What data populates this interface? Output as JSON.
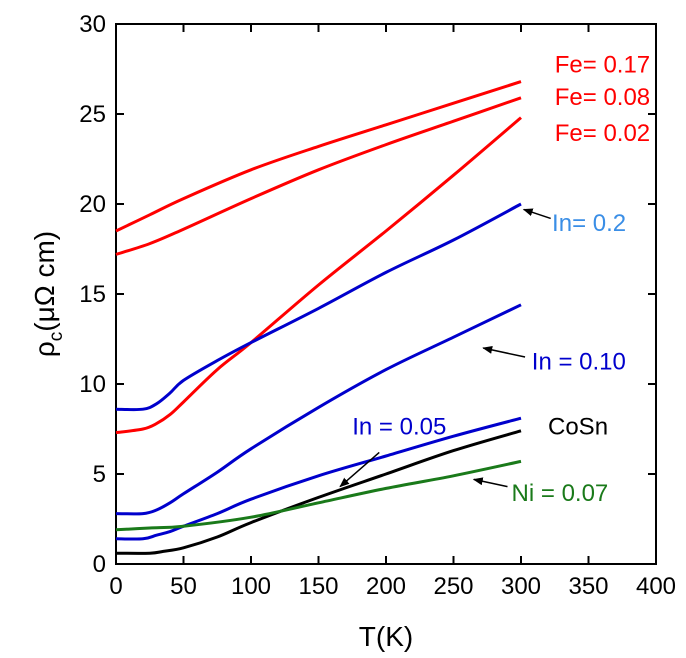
{
  "chart_data": {
    "type": "line",
    "xlabel": "T(K)",
    "ylabel": {
      "main": "ρ",
      "sub": "c",
      "rest": "(μΩ cm)"
    },
    "xlim": [
      0,
      400
    ],
    "ylim": [
      0,
      30
    ],
    "xticks": [
      0,
      50,
      100,
      150,
      200,
      250,
      300,
      350,
      400
    ],
    "yticks": [
      0,
      5,
      10,
      15,
      20,
      25,
      30
    ],
    "grid": false,
    "legend": "none",
    "series": [
      {
        "name": "Fe= 0.17",
        "color": "#ff0000",
        "x": [
          0,
          25,
          50,
          100,
          150,
          200,
          250,
          300
        ],
        "y": [
          18.5,
          19.4,
          20.3,
          21.9,
          23.2,
          24.4,
          25.6,
          26.8
        ]
      },
      {
        "name": "Fe= 0.08",
        "color": "#ff0000",
        "x": [
          0,
          25,
          50,
          100,
          150,
          200,
          250,
          300
        ],
        "y": [
          17.2,
          17.8,
          18.6,
          20.3,
          21.9,
          23.3,
          24.6,
          25.9
        ]
      },
      {
        "name": "Fe= 0.02",
        "color": "#ff0000",
        "x": [
          0,
          20,
          30,
          40,
          50,
          75,
          100,
          150,
          200,
          250,
          300
        ],
        "y": [
          7.3,
          7.5,
          7.8,
          8.3,
          9.0,
          10.8,
          12.3,
          15.5,
          18.5,
          21.6,
          24.8
        ]
      },
      {
        "name": "In= 0.2",
        "color": "#0000cc",
        "x": [
          0,
          20,
          30,
          40,
          50,
          75,
          100,
          150,
          200,
          250,
          300
        ],
        "y": [
          8.6,
          8.6,
          8.9,
          9.5,
          10.2,
          11.3,
          12.3,
          14.2,
          16.2,
          18.0,
          20.0
        ]
      },
      {
        "name": "In = 0.10",
        "color": "#0000cc",
        "x": [
          0,
          20,
          30,
          40,
          50,
          75,
          100,
          150,
          200,
          250,
          300
        ],
        "y": [
          2.8,
          2.8,
          3.0,
          3.4,
          3.9,
          5.1,
          6.4,
          8.7,
          10.8,
          12.6,
          14.4
        ]
      },
      {
        "name": "In = 0.05",
        "color": "#0000cc",
        "x": [
          0,
          20,
          30,
          40,
          50,
          75,
          100,
          150,
          200,
          250,
          300
        ],
        "y": [
          1.4,
          1.4,
          1.6,
          1.8,
          2.1,
          2.8,
          3.6,
          4.9,
          6.0,
          7.1,
          8.1
        ]
      },
      {
        "name": "CoSn",
        "color": "#000000",
        "x": [
          0,
          25,
          35,
          50,
          75,
          100,
          150,
          200,
          250,
          300
        ],
        "y": [
          0.6,
          0.6,
          0.7,
          0.9,
          1.5,
          2.3,
          3.7,
          5.0,
          6.3,
          7.4
        ]
      },
      {
        "name": "Ni = 0.07",
        "color": "#1a7a1a",
        "x": [
          0,
          25,
          50,
          100,
          150,
          200,
          250,
          300
        ],
        "y": [
          1.9,
          2.0,
          2.1,
          2.6,
          3.4,
          4.2,
          4.9,
          5.7
        ]
      }
    ],
    "labels": [
      {
        "text": "Fe= 0.17",
        "color": "#ff0000",
        "x": 325,
        "y": 27.3
      },
      {
        "text": "Fe= 0.08",
        "color": "#ff0000",
        "x": 325,
        "y": 25.5
      },
      {
        "text": "Fe= 0.02",
        "color": "#ff0000",
        "x": 325,
        "y": 23.5
      },
      {
        "text": "In= 0.2",
        "color": "#3a8ee6",
        "x": 323,
        "y": 18.5
      },
      {
        "text": "In = 0.10",
        "color": "#0000cc",
        "x": 308,
        "y": 10.8
      },
      {
        "text": "In = 0.05",
        "color": "#0000cc",
        "x": 175,
        "y": 7.2
      },
      {
        "text": "CoSn",
        "color": "#000000",
        "x": 320,
        "y": 7.2
      },
      {
        "text": "Ni = 0.07",
        "color": "#1a7a1a",
        "x": 293,
        "y": 3.5
      }
    ],
    "arrows": [
      {
        "from": [
          322,
          19.2
        ],
        "to": [
          302,
          19.7
        ]
      },
      {
        "from": [
          303,
          11.5
        ],
        "to": [
          272,
          12.0
        ]
      },
      {
        "from": [
          195,
          6.2
        ],
        "to": [
          166,
          4.3
        ]
      },
      {
        "from": [
          290,
          4.3
        ],
        "to": [
          265,
          4.7
        ]
      }
    ]
  }
}
